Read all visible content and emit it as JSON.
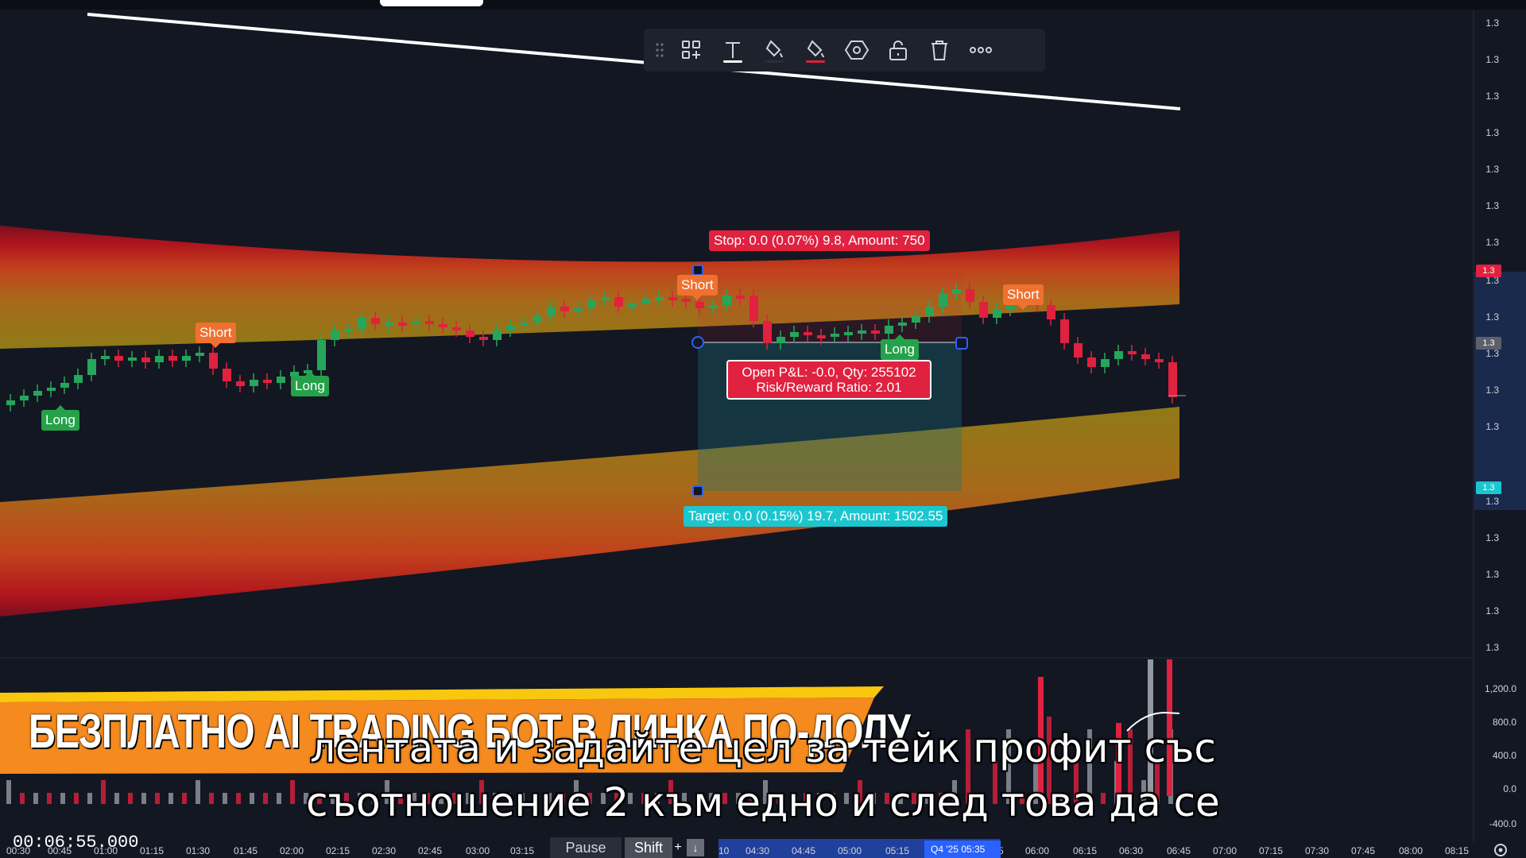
{
  "toolbar": {
    "items": [
      "drag-handle",
      "object-tree-icon",
      "text-icon",
      "fill-color-icon",
      "border-color-icon",
      "settings-hexagon-icon",
      "unlock-icon",
      "trash-icon",
      "more-icon"
    ],
    "active_color": "#ffffff"
  },
  "position_tool": {
    "stop_label": "Stop: 0.0 (0.07%) 9.8, Amount: 750",
    "target_label": "Target: 0.0 (0.15%) 19.7, Amount: 1502.55",
    "pnl_line1": "Open P&L: -0.0, Qty: 255102",
    "pnl_line2": "Risk/Reward Ratio: 2.01",
    "stop_color": "#e0213f",
    "target_color": "#1cc6cf"
  },
  "signals": {
    "short_label": "Short",
    "long_label": "Long",
    "short_color": "#f0712f",
    "long_color": "#25a249"
  },
  "price_axis": {
    "label": "1.3",
    "volume_labels": [
      "1,200.0",
      "800.0",
      "400.0",
      "0.0",
      "-400.0"
    ],
    "tag_red": "1.3",
    "tag_gray": "1.3",
    "tag_cyan": "1.3"
  },
  "time_axis": {
    "labels": [
      "00:30",
      "00:45",
      "01:00",
      "01:15",
      "01:30",
      "01:45",
      "02:00",
      "02:15",
      "02:30",
      "02:45",
      "03:00",
      "03:15",
      "10",
      "04:30",
      "04:45",
      "05:00",
      "05:15",
      "05:35",
      "5",
      "06:00",
      "06:15",
      "06:30",
      "06:45",
      "07:00",
      "07:15",
      "07:30",
      "07:45",
      "08:00",
      "08:15"
    ],
    "quarter_tag": "Q4 '25"
  },
  "replay": {
    "timecode": "00:06:55.000",
    "pause_label": "Pause",
    "shift_label": "Shift",
    "plus_label": "+",
    "down_label": "↓"
  },
  "banner": {
    "title": "БЕЗПЛАТНО AI TRADING БОТ В ЛИНКА ПО-ДОЛУ"
  },
  "subtitles": {
    "line1": "лентата и задайте цел за тейк профит със",
    "line2": "съотношение 2 към едно и след това да се"
  },
  "colors": {
    "background": "#131722",
    "bull": "#26a65b",
    "bear": "#e0213f"
  }
}
